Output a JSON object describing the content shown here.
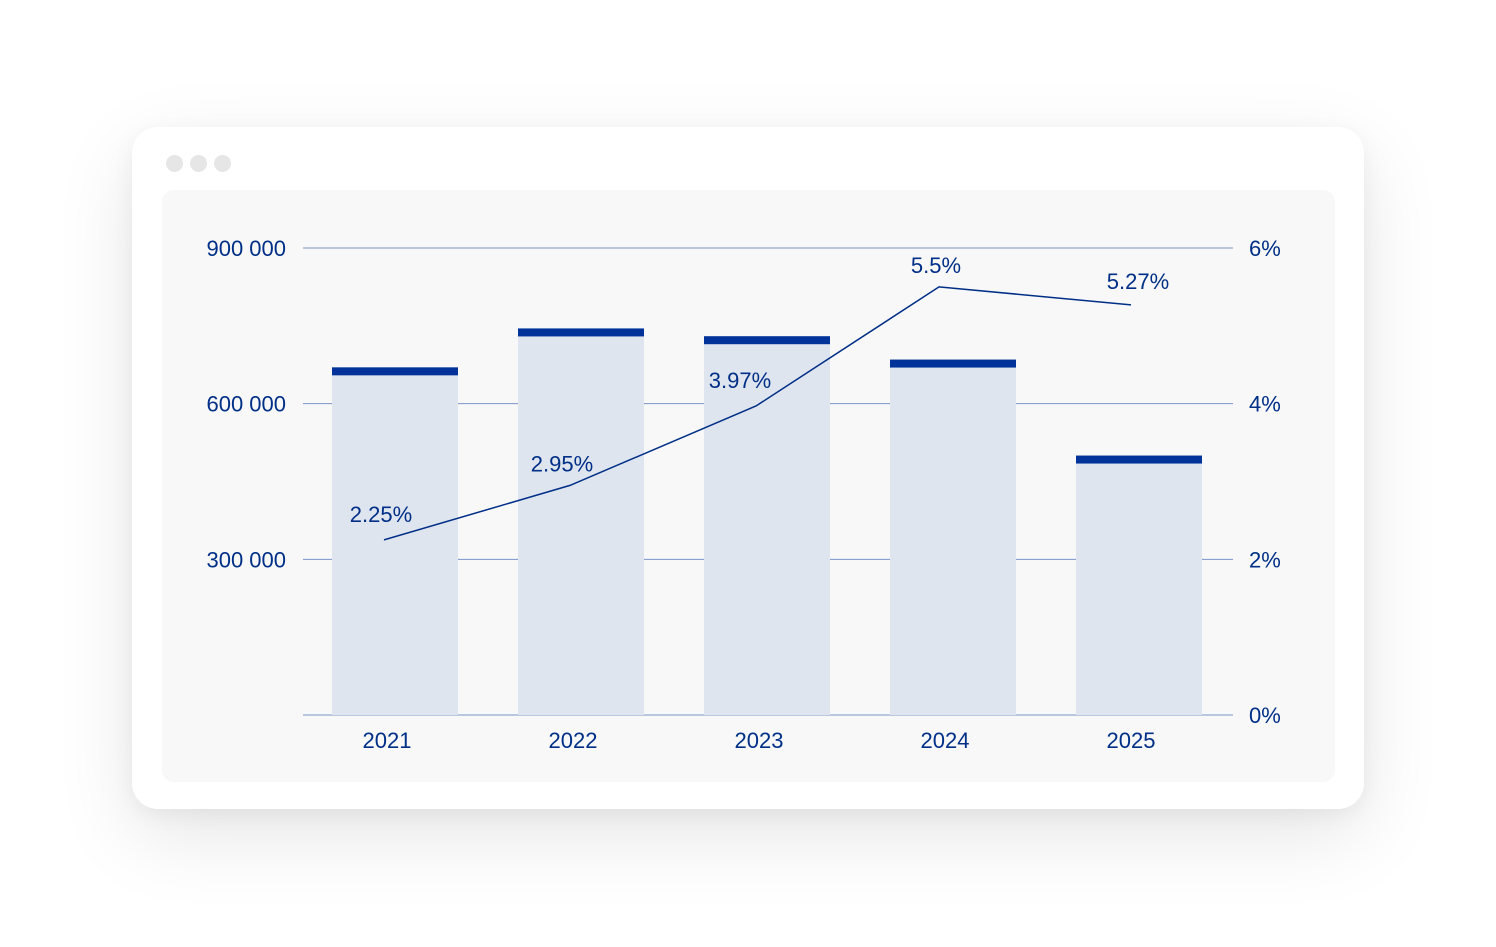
{
  "window": {
    "controls": [
      "window-dot",
      "window-dot",
      "window-dot"
    ]
  },
  "colors": {
    "bar_fill": "#dfe5ef",
    "bar_cap": "#00339a",
    "line": "#002f87",
    "grid": "#7a93c8",
    "text": "#002f87",
    "panel": "#f8f8f8"
  },
  "chart_data": {
    "type": "bar",
    "categories": [
      "2021",
      "2022",
      "2023",
      "2024",
      "2025"
    ],
    "series": [
      {
        "type": "bar",
        "axis": "left",
        "values": [
          670000,
          745000,
          730000,
          685000,
          500000
        ]
      },
      {
        "type": "line",
        "axis": "right",
        "values": [
          2.25,
          2.95,
          3.97,
          5.5,
          5.27
        ],
        "labels": [
          "2.25%",
          "2.95%",
          "3.97%",
          "5.5%",
          "5.27%"
        ]
      }
    ],
    "y_left": {
      "ylim": [
        0,
        900000
      ],
      "ticks": [
        300000,
        600000,
        900000
      ],
      "tick_labels": [
        "300 000",
        "600 000",
        "900 000"
      ]
    },
    "y_right": {
      "ylim": [
        0,
        6
      ],
      "ticks": [
        0,
        2,
        4,
        6
      ],
      "tick_labels": [
        "0%",
        "2%",
        "4%",
        "6%"
      ]
    },
    "grid": true,
    "legend": "none"
  }
}
